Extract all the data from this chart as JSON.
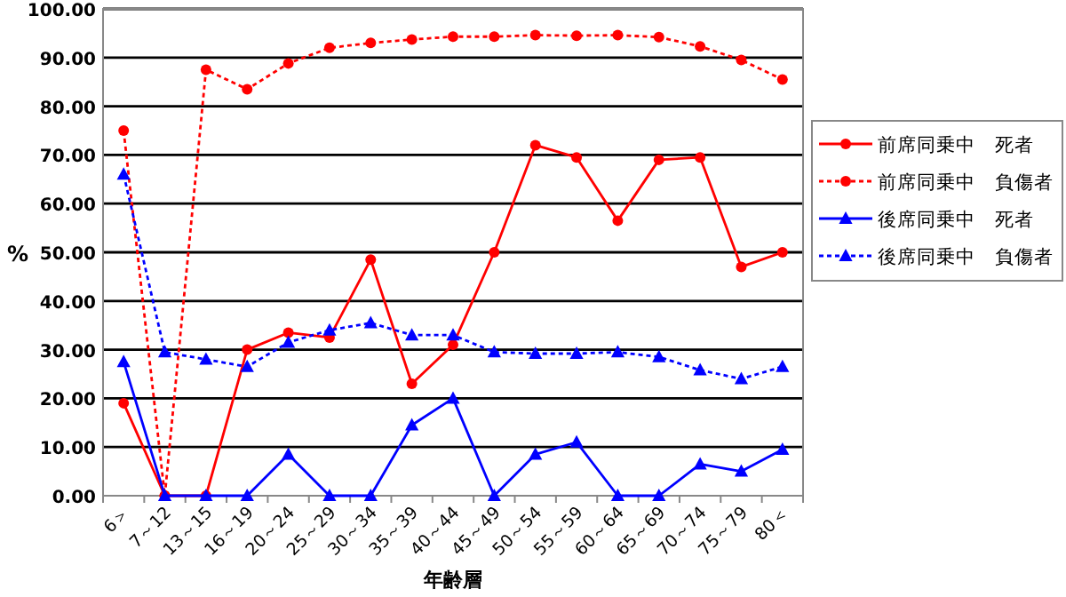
{
  "chart_data": {
    "type": "line",
    "xlabel": "年齢層",
    "ylabel": "%",
    "categories": [
      "6＞",
      "7～12",
      "13～15",
      "16～19",
      "20～24",
      "25～29",
      "30～34",
      "35～39",
      "40～44",
      "45～49",
      "50～54",
      "55～59",
      "60～64",
      "65～69",
      "70～74",
      "75～79",
      "80＜"
    ],
    "series": [
      {
        "name": "前席同乗中　死者",
        "color": "#ff0000",
        "marker": "circle",
        "line_style": "solid",
        "values": [
          19,
          0,
          0,
          30,
          33.5,
          32.5,
          48.5,
          23,
          31,
          50,
          72,
          69.5,
          56.5,
          69,
          69.5,
          47,
          50
        ]
      },
      {
        "name": "前席同乗中　負傷者",
        "color": "#ff0000",
        "marker": "circle",
        "line_style": "dotted",
        "values": [
          75,
          0,
          87.5,
          83.5,
          88.8,
          92,
          93,
          93.7,
          94.3,
          94.3,
          94.6,
          94.5,
          94.6,
          94.2,
          92.3,
          89.5,
          85.5
        ]
      },
      {
        "name": "後席同乗中　死者",
        "color": "#0000ff",
        "marker": "triangle",
        "line_style": "solid",
        "values": [
          27.5,
          0,
          0,
          0,
          8.5,
          0,
          0,
          14.5,
          20,
          0,
          8.5,
          11,
          0,
          0,
          6.5,
          5,
          9.5
        ]
      },
      {
        "name": "後席同乗中　負傷者",
        "color": "#0000ff",
        "marker": "triangle",
        "line_style": "dotted",
        "values": [
          66,
          29.5,
          28,
          26.5,
          31.5,
          34,
          35.5,
          33,
          33,
          29.5,
          29.2,
          29.2,
          29.5,
          28.5,
          25.8,
          24,
          26.5
        ]
      }
    ],
    "ylim": [
      0,
      100
    ],
    "yticks": [
      {
        "value": 0,
        "label": "0.00"
      },
      {
        "value": 10,
        "label": "10.00"
      },
      {
        "value": 20,
        "label": "20.00"
      },
      {
        "value": 30,
        "label": "30.00"
      },
      {
        "value": 40,
        "label": "40.00"
      },
      {
        "value": 50,
        "label": "50.00"
      },
      {
        "value": 60,
        "label": "60.00"
      },
      {
        "value": 70,
        "label": "70.00"
      },
      {
        "value": 80,
        "label": "80.00"
      },
      {
        "value": 90,
        "label": "90.00"
      },
      {
        "value": 100,
        "label": "100.00"
      }
    ],
    "grid": "y",
    "legend": "right"
  }
}
